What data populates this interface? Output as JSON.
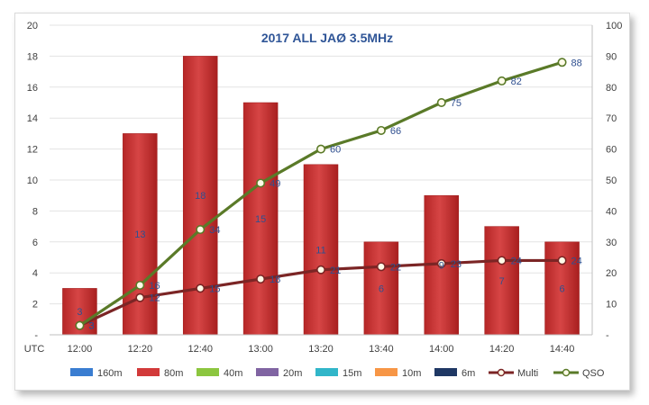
{
  "chart_data": {
    "type": "bar",
    "title": "2017 ALL JAØ 3.5MHz",
    "xlabel": "UTC",
    "categories": [
      "12:00",
      "12:20",
      "12:40",
      "13:00",
      "13:20",
      "13:40",
      "14:00",
      "14:20",
      "14:40"
    ],
    "ylim": [
      0,
      20
    ],
    "y_ticks": [
      "-",
      "2",
      "4",
      "6",
      "8",
      "10",
      "12",
      "14",
      "16",
      "18",
      "20"
    ],
    "y2lim": [
      0,
      100
    ],
    "y2_ticks": [
      "-",
      "10",
      "20",
      "30",
      "40",
      "50",
      "60",
      "70",
      "80",
      "90",
      "100"
    ],
    "grid": true,
    "legend_position": "bottom",
    "series": [
      {
        "name": "160m",
        "kind": "bar",
        "color": "#3a7dd1",
        "values": [
          0,
          0,
          0,
          0,
          0,
          0,
          0,
          0,
          0
        ]
      },
      {
        "name": "80m",
        "kind": "bar",
        "color": "#d23a3a",
        "values": [
          3,
          13,
          18,
          15,
          11,
          6,
          9,
          7,
          6
        ]
      },
      {
        "name": "40m",
        "kind": "bar",
        "color": "#8cc63f",
        "values": [
          0,
          0,
          0,
          0,
          0,
          0,
          0,
          0,
          0
        ]
      },
      {
        "name": "20m",
        "kind": "bar",
        "color": "#8064a2",
        "values": [
          0,
          0,
          0,
          0,
          0,
          0,
          0,
          0,
          0
        ]
      },
      {
        "name": "15m",
        "kind": "bar",
        "color": "#31b6c9",
        "values": [
          0,
          0,
          0,
          0,
          0,
          0,
          0,
          0,
          0
        ]
      },
      {
        "name": "10m",
        "kind": "bar",
        "color": "#f79646",
        "values": [
          0,
          0,
          0,
          0,
          0,
          0,
          0,
          0,
          0
        ]
      },
      {
        "name": "6m",
        "kind": "bar",
        "color": "#1f3864",
        "values": [
          0,
          0,
          0,
          0,
          0,
          0,
          0,
          0,
          0
        ]
      },
      {
        "name": "Multi",
        "kind": "line",
        "axis": "right",
        "color": "#7b2525",
        "values": [
          3,
          12,
          15,
          18,
          21,
          22,
          23,
          24,
          24
        ]
      },
      {
        "name": "QSO",
        "kind": "line",
        "axis": "right",
        "color": "#5a7a28",
        "values": [
          3,
          16,
          34,
          49,
          60,
          66,
          75,
          82,
          88
        ]
      }
    ]
  }
}
